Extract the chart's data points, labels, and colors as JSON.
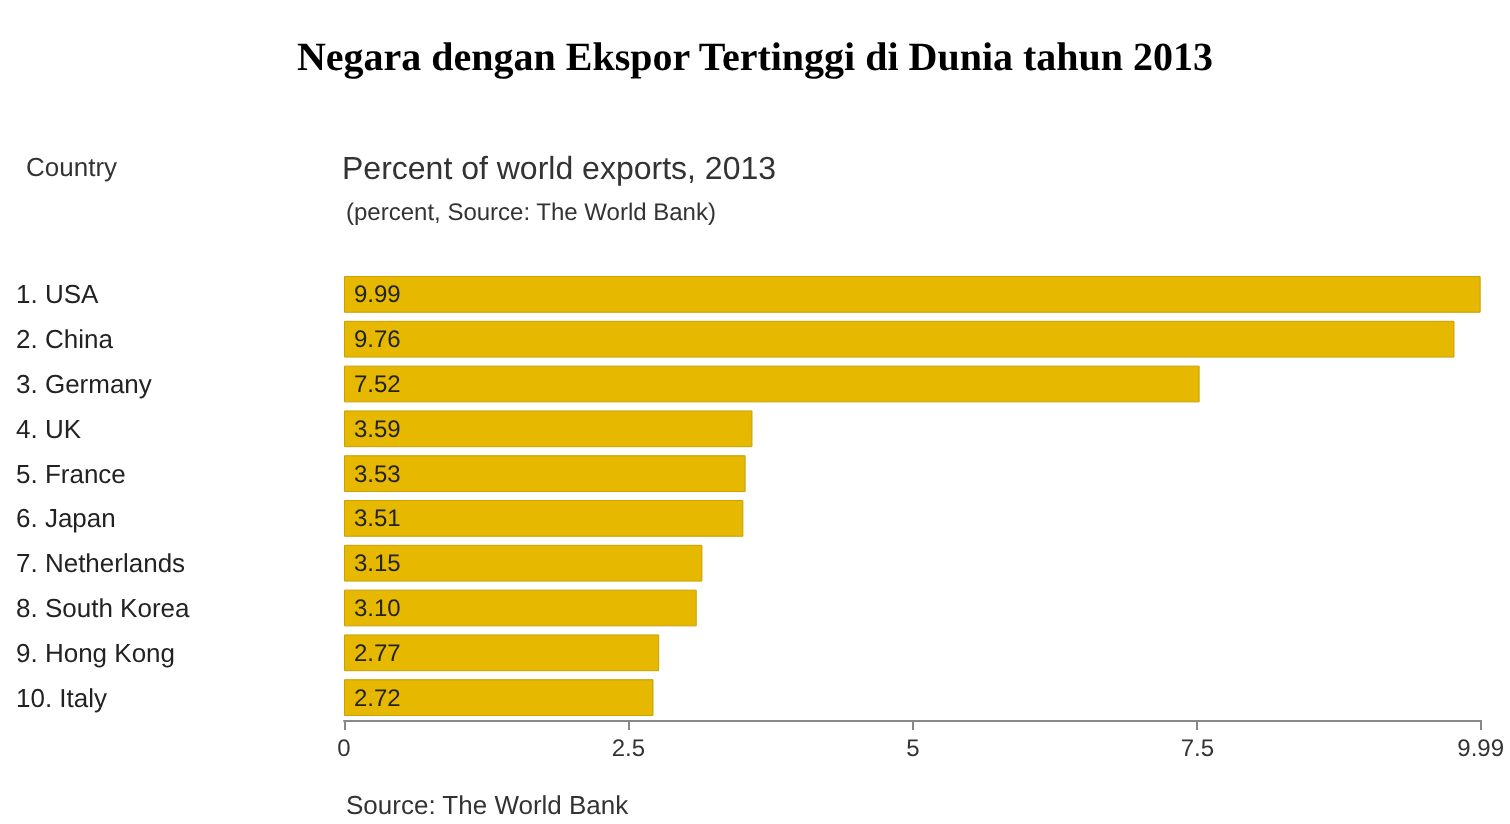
{
  "chart_data": {
    "type": "bar",
    "orientation": "horizontal",
    "title": "Negara dengan Ekspor Tertinggi di Dunia tahun 2013",
    "subtitle": "Percent of world exports, 2013",
    "annotations": [
      "Country",
      "(percent, Source: The World Bank)",
      "Source: The World Bank"
    ],
    "categories": [
      "1. USA",
      "2. China",
      "3. Germany",
      "4. UK",
      "5. France",
      "6. Japan",
      "7. Netherlands",
      "8. South Korea",
      "9. Hong Kong",
      "10. Italy"
    ],
    "values": [
      9.99,
      9.76,
      7.52,
      3.59,
      3.53,
      3.51,
      3.15,
      3.1,
      2.77,
      2.72
    ],
    "value_labels": [
      "9.99",
      "9.76",
      "7.52",
      "3.59",
      "3.53",
      "3.51",
      "3.15",
      "3.10",
      "2.77",
      "2.72"
    ],
    "color": "#e6b800",
    "xlim": [
      0,
      9.99
    ],
    "xticks": [
      0,
      2.5,
      5,
      7.5,
      9.99
    ],
    "grid": false
  }
}
